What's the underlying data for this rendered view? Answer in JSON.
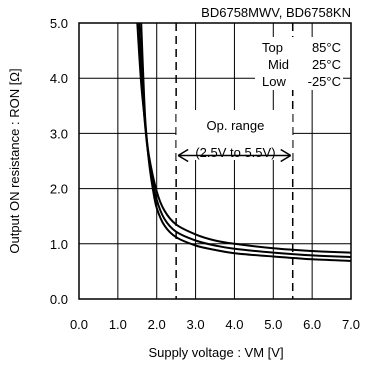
{
  "chart_data": {
    "type": "line",
    "title": "BD6758MWV, BD6758KN",
    "xlabel": "Supply voltage : VM [V]",
    "ylabel": "Output ON resistance : RON [Ω]",
    "xlim": [
      0.0,
      7.0
    ],
    "ylim": [
      0.0,
      5.0
    ],
    "x_ticks": [
      "0.0",
      "1.0",
      "2.0",
      "3.0",
      "4.0",
      "5.0",
      "6.0",
      "7.0"
    ],
    "y_ticks": [
      "0.0",
      "1.0",
      "2.0",
      "3.0",
      "4.0",
      "5.0"
    ],
    "grid": true,
    "legend": {
      "placement": "top-right",
      "entries": [
        {
          "label": "Top",
          "value": "85°C"
        },
        {
          "label": "Mid",
          "value": "25°C"
        },
        {
          "label": "Low",
          "value": "-25°C"
        }
      ]
    },
    "series": [
      {
        "name": "Top",
        "x": [
          1.5,
          1.6,
          1.7,
          1.8,
          2.0,
          2.2,
          2.5,
          3.0,
          3.5,
          4.0,
          5.0,
          6.0,
          7.0
        ],
        "y": [
          5.0,
          3.9,
          3.2,
          2.6,
          1.95,
          1.6,
          1.35,
          1.17,
          1.06,
          1.0,
          0.92,
          0.87,
          0.84
        ]
      },
      {
        "name": "Mid",
        "x": [
          1.55,
          1.65,
          1.75,
          1.85,
          2.0,
          2.2,
          2.5,
          3.0,
          3.5,
          4.0,
          5.0,
          6.0,
          7.0
        ],
        "y": [
          5.0,
          3.6,
          2.8,
          2.3,
          1.8,
          1.45,
          1.22,
          1.06,
          0.97,
          0.91,
          0.84,
          0.79,
          0.76
        ]
      },
      {
        "name": "Low",
        "x": [
          1.6,
          1.7,
          1.8,
          1.9,
          2.0,
          2.2,
          2.5,
          3.0,
          3.5,
          4.0,
          5.0,
          6.0,
          7.0
        ],
        "y": [
          5.0,
          3.3,
          2.5,
          2.0,
          1.65,
          1.33,
          1.12,
          0.97,
          0.89,
          0.83,
          0.77,
          0.72,
          0.69
        ]
      }
    ],
    "annotations": {
      "op_range_label": "Op. range",
      "op_range_values": "(2.5V to 5.5V)",
      "op_range": [
        2.5,
        5.5
      ],
      "arrow_y": 2.6
    }
  }
}
